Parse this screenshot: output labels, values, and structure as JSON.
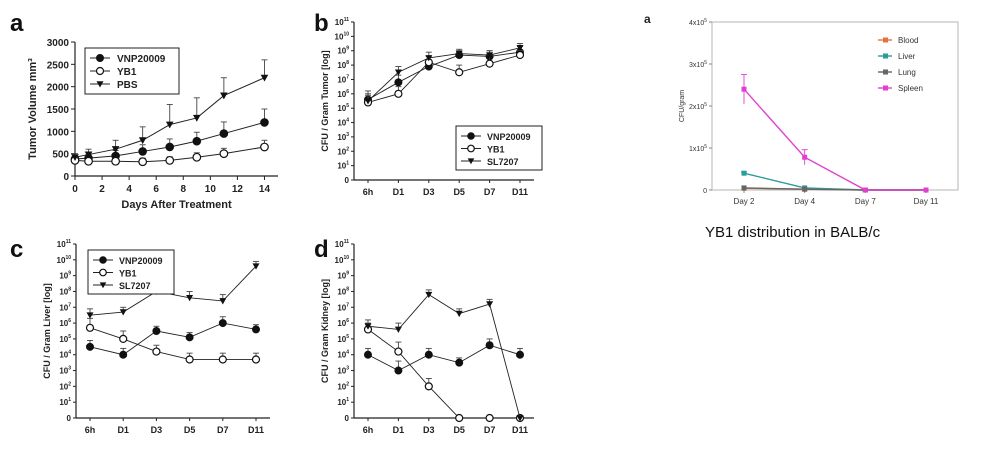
{
  "chart_data": [
    {
      "id": "a",
      "panel_label": "a",
      "type": "line",
      "xlabel": "Days After Treatment",
      "ylabel": "Tumor Volume mm³",
      "x": [
        0,
        1,
        3,
        5,
        7,
        9,
        11,
        14
      ],
      "xticks": [
        0,
        2,
        4,
        6,
        8,
        10,
        12,
        14
      ],
      "yticks": [
        0,
        500,
        1000,
        1500,
        2000,
        2500,
        3000
      ],
      "xlim": [
        0,
        15
      ],
      "ylim": [
        0,
        3000
      ],
      "legend_position": "top-left",
      "series": [
        {
          "name": "VNP20009",
          "marker": "filled-circle",
          "values": [
            380,
            400,
            450,
            550,
            650,
            780,
            950,
            1200
          ],
          "err": [
            60,
            80,
            120,
            150,
            180,
            200,
            260,
            300
          ]
        },
        {
          "name": "YB1",
          "marker": "open-circle",
          "values": [
            350,
            330,
            330,
            320,
            350,
            420,
            500,
            650
          ],
          "err": [
            50,
            60,
            70,
            80,
            80,
            100,
            120,
            150
          ]
        },
        {
          "name": "PBS",
          "marker": "filled-triangle",
          "values": [
            420,
            480,
            600,
            800,
            1150,
            1300,
            1800,
            2200
          ],
          "err": [
            80,
            120,
            200,
            300,
            450,
            450,
            400,
            400
          ]
        }
      ]
    },
    {
      "id": "b",
      "panel_label": "b",
      "type": "line",
      "ylabel": "CFU / Gram Tumor [log]",
      "categories": [
        "6h",
        "D1",
        "D3",
        "D5",
        "D7",
        "D11"
      ],
      "ytick_exps": [
        0,
        1,
        2,
        3,
        4,
        5,
        6,
        7,
        8,
        9,
        10,
        11
      ],
      "ylim_log10": [
        0,
        11
      ],
      "legend_position": "bottom-right",
      "series": [
        {
          "name": "VNP20009",
          "marker": "filled-circle",
          "log10_values": [
            5.6,
            6.8,
            7.9,
            8.7,
            8.6,
            8.9
          ],
          "err": [
            0.6,
            0.5,
            0.4,
            0.3,
            0.4,
            0.4
          ]
        },
        {
          "name": "YB1",
          "marker": "open-circle",
          "log10_values": [
            5.4,
            6.0,
            8.2,
            7.5,
            8.1,
            8.7
          ],
          "err": [
            0.5,
            0.5,
            0.4,
            0.5,
            0.6,
            0.3
          ]
        },
        {
          "name": "SL7207",
          "marker": "filled-triangle",
          "log10_values": [
            5.5,
            7.5,
            8.5,
            8.8,
            8.7,
            9.2
          ],
          "err": [
            0.5,
            0.4,
            0.4,
            0.3,
            0.3,
            0.3
          ]
        }
      ]
    },
    {
      "id": "c",
      "panel_label": "c",
      "type": "line",
      "ylabel": "CFU / Gram Liver [log]",
      "categories": [
        "6h",
        "D1",
        "D3",
        "D5",
        "D7",
        "D11"
      ],
      "ytick_exps": [
        0,
        1,
        2,
        3,
        4,
        5,
        6,
        7,
        8,
        9,
        10,
        11
      ],
      "ylim_log10": [
        0,
        11
      ],
      "legend_position": "top-left",
      "series": [
        {
          "name": "VNP20009",
          "marker": "filled-circle",
          "log10_values": [
            4.5,
            4.0,
            5.5,
            5.1,
            6.0,
            5.6
          ],
          "err": [
            0.4,
            0.4,
            0.3,
            0.3,
            0.4,
            0.3
          ]
        },
        {
          "name": "YB1",
          "marker": "open-circle",
          "log10_values": [
            5.7,
            5.0,
            4.2,
            3.7,
            3.7,
            3.7
          ],
          "err": [
            0.6,
            0.5,
            0.4,
            0.4,
            0.4,
            0.4
          ]
        },
        {
          "name": "SL7207",
          "marker": "filled-triangle",
          "log10_values": [
            6.5,
            6.7,
            8.0,
            7.6,
            7.4,
            9.6
          ],
          "err": [
            0.4,
            0.3,
            0.4,
            0.4,
            0.4,
            0.3
          ]
        }
      ]
    },
    {
      "id": "d",
      "panel_label": "d",
      "type": "line",
      "ylabel": "CFU / Gram Kidney [log]",
      "categories": [
        "6h",
        "D1",
        "D3",
        "D5",
        "D7",
        "D11"
      ],
      "ytick_exps": [
        0,
        1,
        2,
        3,
        4,
        5,
        6,
        7,
        8,
        9,
        10,
        11
      ],
      "ylim_log10": [
        0,
        11
      ],
      "series": [
        {
          "name": "VNP20009",
          "marker": "filled-circle",
          "log10_values": [
            4.0,
            3.0,
            4.0,
            3.5,
            4.6,
            4.0
          ],
          "err": [
            0.4,
            0.6,
            0.4,
            0.3,
            0.4,
            0.4
          ]
        },
        {
          "name": "YB1",
          "marker": "open-circle",
          "log10_values": [
            5.6,
            4.2,
            2.0,
            0.0,
            0.0,
            0.0
          ],
          "err": [
            0.4,
            0.6,
            0.5,
            0.0,
            0.0,
            0.0
          ]
        },
        {
          "name": "SL7207",
          "marker": "filled-triangle",
          "log10_values": [
            5.8,
            5.6,
            7.8,
            6.6,
            7.2,
            0.0
          ],
          "err": [
            0.4,
            0.4,
            0.3,
            0.3,
            0.3,
            0.0
          ]
        }
      ]
    },
    {
      "id": "e",
      "panel_label": "a",
      "type": "line",
      "ylabel": "CFU/gram",
      "categories": [
        "Day 2",
        "Day 4",
        "Day 7",
        "Day 11"
      ],
      "ytick_mantissas": [
        0,
        1,
        2,
        3,
        4
      ],
      "ytick_exp": 5,
      "ylim": [
        0,
        400000
      ],
      "legend_position": "top-right",
      "series": [
        {
          "name": "Blood",
          "color": "#e8733a",
          "values": [
            4000,
            2000,
            0,
            0
          ],
          "err": [
            0,
            0,
            0,
            0
          ]
        },
        {
          "name": "Liver",
          "color": "#2a9d9a",
          "values": [
            40000,
            5000,
            0,
            0
          ],
          "err": [
            3000,
            0,
            0,
            0
          ]
        },
        {
          "name": "Lung",
          "color": "#666666",
          "values": [
            5000,
            2000,
            0,
            0
          ],
          "err": [
            0,
            0,
            0,
            0
          ]
        },
        {
          "name": "Spleen",
          "color": "#e040d0",
          "values": [
            240000,
            78000,
            0,
            0
          ],
          "err": [
            35000,
            18000,
            0,
            0
          ]
        }
      ],
      "caption": "YB1 distribution in BALB/c"
    }
  ]
}
